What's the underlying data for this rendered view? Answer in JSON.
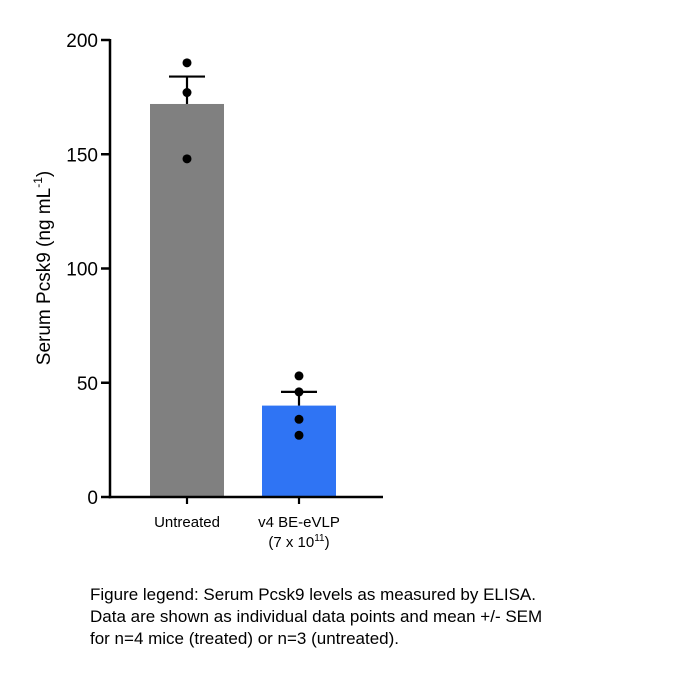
{
  "chart_data": {
    "type": "bar",
    "title": "",
    "xlabel": "",
    "ylabel": {
      "main": "Serum Pcsk9  (ng  mL",
      "superscript": "-1",
      "close": ")"
    },
    "ylim": [
      0,
      200
    ],
    "yticks": [
      0,
      50,
      100,
      150,
      200
    ],
    "grid": false,
    "categories": [
      {
        "label": [
          "Untreated"
        ],
        "value": 172,
        "sem": 12,
        "color": "#808080",
        "points": [
          190,
          177,
          148
        ]
      },
      {
        "label": [
          "v4 BE-eVLP",
          "(7 x 10"
        ],
        "label_superscript": "11",
        "label_close": ")",
        "value": 40,
        "sem": 6,
        "color": "#2f74f4",
        "points": [
          53,
          46,
          34,
          27
        ]
      }
    ]
  },
  "legend_text": [
    "Figure legend: Serum Pcsk9 levels as measured by ELISA.",
    "Data are shown as individual data points and mean +/- SEM",
    "for n=4 mice (treated) or n=3 (untreated)."
  ]
}
